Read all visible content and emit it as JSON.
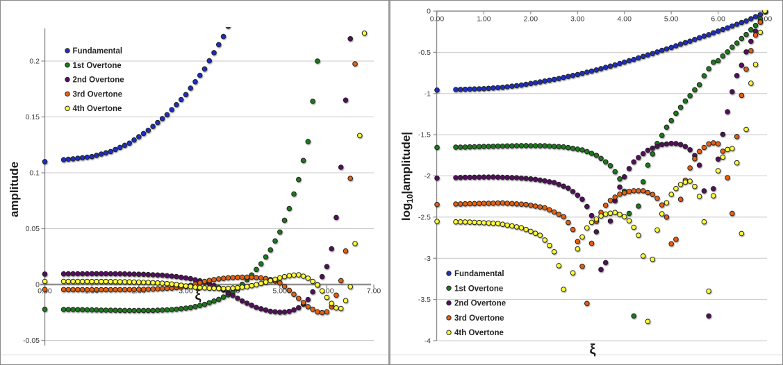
{
  "chart_data": {
    "type": "scatter",
    "description_title": "",
    "x_variable": "ξ",
    "sampling": {
      "first_x": 0,
      "range_start": 0.4,
      "range_end": 7.0,
      "step": 0.1
    },
    "series": [
      {
        "name": "Fundamental",
        "color": "#1f2fc4",
        "anchor_points": [
          [
            0,
            0.11
          ],
          [
            0.6,
            0.1125
          ],
          [
            1.0,
            0.1145
          ],
          [
            1.4,
            0.119
          ],
          [
            1.8,
            0.1265
          ],
          [
            2.2,
            0.138
          ],
          [
            2.6,
            0.152
          ],
          [
            3.0,
            0.17
          ],
          [
            3.4,
            0.193
          ],
          [
            3.8,
            0.222
          ],
          [
            4.2,
            0.259
          ],
          [
            4.6,
            0.305
          ],
          [
            5.0,
            0.362
          ],
          [
            5.4,
            0.432
          ],
          [
            5.8,
            0.518
          ],
          [
            6.2,
            0.625
          ],
          [
            6.6,
            0.76
          ],
          [
            6.9,
            0.905
          ],
          [
            7,
            1.0
          ]
        ]
      },
      {
        "name": "1st Overtone",
        "color": "#1a7a1a",
        "anchor_points": [
          [
            0,
            -0.0222
          ],
          [
            0.6,
            -0.0224
          ],
          [
            1.2,
            -0.0229
          ],
          [
            1.8,
            -0.0233
          ],
          [
            2.3,
            -0.0232
          ],
          [
            2.7,
            -0.0225
          ],
          [
            3.1,
            -0.0207
          ],
          [
            3.4,
            -0.0178
          ],
          [
            3.7,
            -0.0133
          ],
          [
            3.9,
            -0.0092
          ],
          [
            4.05,
            -0.0052
          ],
          [
            4.15,
            -0.0018
          ],
          [
            4.25,
            0.0022
          ],
          [
            4.4,
            0.0085
          ],
          [
            4.6,
            0.0185
          ],
          [
            4.8,
            0.031
          ],
          [
            5.0,
            0.047
          ],
          [
            5.2,
            0.068
          ],
          [
            5.4,
            0.094
          ],
          [
            5.6,
            0.128
          ],
          [
            5.8,
            0.2
          ],
          [
            5.9,
            0.24
          ],
          [
            6.0,
            0.25
          ],
          [
            6.2,
            0.32
          ],
          [
            6.4,
            0.41
          ],
          [
            6.6,
            0.52
          ],
          [
            6.8,
            0.67
          ],
          [
            6.95,
            0.88
          ],
          [
            7,
            1.0
          ]
        ]
      },
      {
        "name": "2nd Overtone",
        "color": "#55105f",
        "anchor_points": [
          [
            0,
            0.0094
          ],
          [
            0.6,
            0.0096
          ],
          [
            1.2,
            0.0097
          ],
          [
            1.7,
            0.0095
          ],
          [
            2.1,
            0.0091
          ],
          [
            2.5,
            0.0083
          ],
          [
            2.8,
            0.0071
          ],
          [
            3.1,
            0.0052
          ],
          [
            3.3,
            0.0033
          ],
          [
            3.45,
            0.0015
          ],
          [
            3.58,
            -0.0005
          ],
          [
            3.75,
            -0.0038
          ],
          [
            3.95,
            -0.0085
          ],
          [
            4.2,
            -0.0148
          ],
          [
            4.5,
            -0.0205
          ],
          [
            4.8,
            -0.024
          ],
          [
            5.05,
            -0.025
          ],
          [
            5.25,
            -0.0237
          ],
          [
            5.45,
            -0.0198
          ],
          [
            5.6,
            -0.0135
          ],
          [
            5.72,
            -0.0052
          ],
          [
            5.8,
            -0.0002
          ],
          [
            5.88,
            0.0052
          ],
          [
            6.0,
            0.016
          ],
          [
            6.1,
            0.032
          ],
          [
            6.2,
            0.06
          ],
          [
            6.3,
            0.105
          ],
          [
            6.4,
            0.165
          ],
          [
            6.5,
            0.22
          ],
          [
            6.6,
            0.32
          ],
          [
            6.7,
            0.43
          ],
          [
            6.8,
            0.57
          ],
          [
            6.9,
            0.75
          ],
          [
            7,
            1.0
          ]
        ]
      },
      {
        "name": "3rd Overtone",
        "color": "#e86010",
        "anchor_points": [
          [
            0,
            -0.0045
          ],
          [
            0.7,
            -0.0046
          ],
          [
            1.4,
            -0.0047
          ],
          [
            1.9,
            -0.0045
          ],
          [
            2.3,
            -0.0041
          ],
          [
            2.7,
            -0.0032
          ],
          [
            2.95,
            -0.002
          ],
          [
            3.1,
            -0.0008
          ],
          [
            3.22,
            0.0005
          ],
          [
            3.4,
            0.0028
          ],
          [
            3.65,
            0.0048
          ],
          [
            3.9,
            0.006
          ],
          [
            4.15,
            0.0066
          ],
          [
            4.4,
            0.0066
          ],
          [
            4.65,
            0.0058
          ],
          [
            4.85,
            0.004
          ],
          [
            5.0,
            0.0015
          ],
          [
            5.08,
            -0.001
          ],
          [
            5.2,
            -0.0052
          ],
          [
            5.4,
            -0.0125
          ],
          [
            5.6,
            -0.0198
          ],
          [
            5.8,
            -0.0245
          ],
          [
            5.95,
            -0.0255
          ],
          [
            6.05,
            -0.0235
          ],
          [
            6.13,
            -0.0178
          ],
          [
            6.2,
            -0.0095
          ],
          [
            6.26,
            -0.0022
          ],
          [
            6.3,
            0.0035
          ],
          [
            6.38,
            0.02
          ],
          [
            6.46,
            0.06
          ],
          [
            6.54,
            0.13
          ],
          [
            6.62,
            0.22
          ],
          [
            6.72,
            0.36
          ],
          [
            6.82,
            0.55
          ],
          [
            6.92,
            0.78
          ],
          [
            7,
            1.0
          ]
        ]
      },
      {
        "name": "4th Overtone",
        "color": "#ffff33",
        "anchor_points": [
          [
            0,
            0.0028
          ],
          [
            0.7,
            0.00275
          ],
          [
            1.3,
            0.00265
          ],
          [
            1.8,
            0.00235
          ],
          [
            2.2,
            0.0019
          ],
          [
            2.5,
            0.0012
          ],
          [
            2.65,
            0.00062
          ],
          [
            2.75,
            0.00022
          ],
          [
            2.85,
            -0.00035
          ],
          [
            3.0,
            -0.0013
          ],
          [
            3.25,
            -0.0026
          ],
          [
            3.55,
            -0.0034
          ],
          [
            3.8,
            -0.0036
          ],
          [
            4.05,
            -0.0031
          ],
          [
            4.3,
            -0.0019
          ],
          [
            4.48,
            -0.0004
          ],
          [
            4.62,
            0.0012
          ],
          [
            4.85,
            0.0041
          ],
          [
            5.05,
            0.0066
          ],
          [
            5.25,
            0.0083
          ],
          [
            5.42,
            0.0087
          ],
          [
            5.58,
            0.0062
          ],
          [
            5.72,
            0.0022
          ],
          [
            5.8,
            -0.0004
          ],
          [
            5.92,
            -0.0068
          ],
          [
            6.05,
            -0.0145
          ],
          [
            6.18,
            -0.0208
          ],
          [
            6.3,
            -0.0215
          ],
          [
            6.42,
            -0.013
          ],
          [
            6.5,
            -0.002
          ],
          [
            6.56,
            0.01
          ],
          [
            6.62,
            0.05
          ],
          [
            6.68,
            0.11
          ],
          [
            6.74,
            0.18
          ],
          [
            6.8,
            0.225
          ],
          [
            6.88,
            0.48
          ],
          [
            6.94,
            0.7
          ],
          [
            7,
            1.0
          ]
        ]
      }
    ],
    "charts": [
      {
        "id": "linear",
        "ylabel": "amplitude",
        "xlabel": "ξ",
        "xticks": [
          "0.00",
          "1.00",
          "2.00",
          "3.00",
          "4.00",
          "5.00",
          "6.00",
          "7.00"
        ],
        "yticks": [
          "0.2",
          "0.15",
          "0.1",
          "0.05",
          "0",
          "-0.05"
        ],
        "xlim": [
          0,
          7
        ],
        "ylim": [
          -0.055,
          0.229
        ],
        "grid": "horizontal",
        "legend_position": "upper-left",
        "x_axis_position": "zero-line"
      },
      {
        "id": "log",
        "ylabel_prefix": "log",
        "ylabel_sub": "10",
        "ylabel_rest": "|amplitude|",
        "xlabel": "ξ",
        "xticks": [
          "0.00",
          "1.00",
          "2.00",
          "3.00",
          "4.00",
          "5.00",
          "6.00",
          "7.00"
        ],
        "yticks": [
          "0",
          "-0.5",
          "-1",
          "-1.5",
          "-2",
          "-2.5",
          "-3",
          "-3.5",
          "-4"
        ],
        "xlim": [
          0,
          7
        ],
        "ylim": [
          -4,
          0
        ],
        "grid": "horizontal",
        "legend_position": "lower-left",
        "x_axis_position": "top"
      }
    ]
  },
  "colors": {
    "gridline": "#c8c8c8",
    "axis": "#8c8c8c",
    "tick_text": "#3a3a3a",
    "legend_text": "#262626",
    "dot_outline": "#222222",
    "panel_border": "#8a8a8a"
  }
}
